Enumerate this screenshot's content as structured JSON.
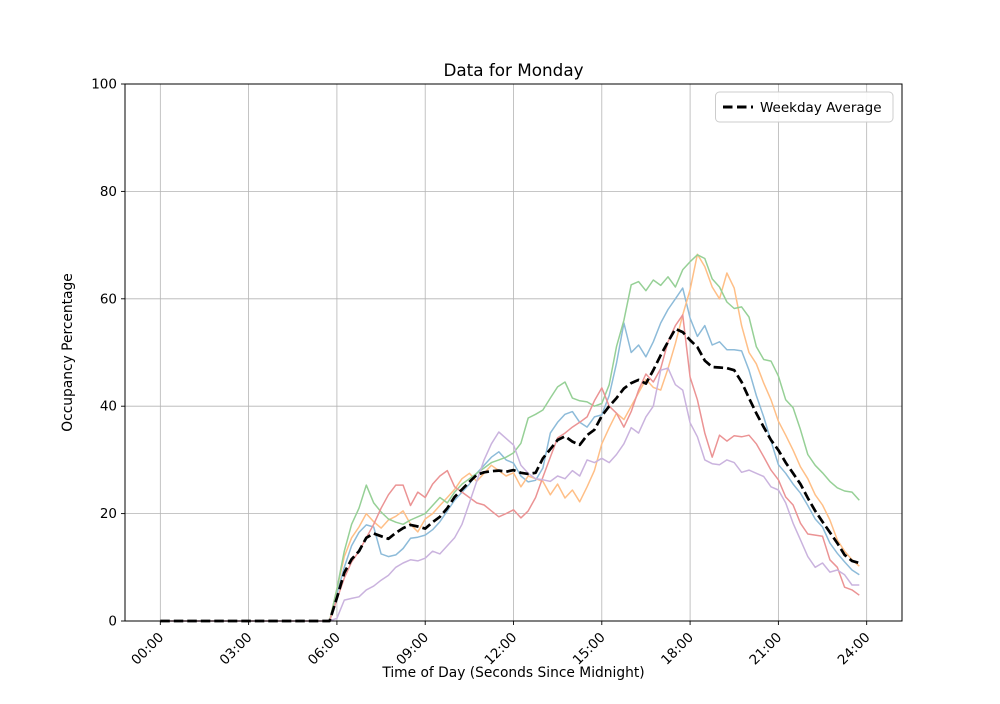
{
  "chart_data": {
    "type": "line",
    "title": "Data for Monday",
    "xlabel": "Time of Day (Seconds Since Midnight)",
    "ylabel": "Occupancy Percentage",
    "grid": true,
    "legend": {
      "position": "upper right",
      "entries": [
        {
          "label": "Weekday Average",
          "style": "dashed",
          "color": "#000000"
        }
      ]
    },
    "xlim_hours": [
      -1.2,
      25.2
    ],
    "ylim": [
      0,
      100
    ],
    "x_ticks": [
      {
        "hours": 0,
        "label": "00:00"
      },
      {
        "hours": 3,
        "label": "03:00"
      },
      {
        "hours": 6,
        "label": "06:00"
      },
      {
        "hours": 9,
        "label": "09:00"
      },
      {
        "hours": 12,
        "label": "12:00"
      },
      {
        "hours": 15,
        "label": "15:00"
      },
      {
        "hours": 18,
        "label": "18:00"
      },
      {
        "hours": 21,
        "label": "21:00"
      },
      {
        "hours": 24,
        "label": "24:00"
      }
    ],
    "y_ticks": [
      {
        "value": 0,
        "label": "0"
      },
      {
        "value": 20,
        "label": "20"
      },
      {
        "value": 40,
        "label": "40"
      },
      {
        "value": 60,
        "label": "60"
      },
      {
        "value": 80,
        "label": "80"
      },
      {
        "value": 100,
        "label": "100"
      }
    ],
    "x_hours": [
      0,
      0.25,
      0.5,
      0.75,
      1,
      1.25,
      1.5,
      1.75,
      2,
      2.25,
      2.5,
      2.75,
      3,
      3.25,
      3.5,
      3.75,
      4,
      4.25,
      4.5,
      4.75,
      5,
      5.25,
      5.5,
      5.75,
      6,
      6.25,
      6.5,
      6.75,
      7,
      7.25,
      7.5,
      7.75,
      8,
      8.25,
      8.5,
      8.75,
      9,
      9.25,
      9.5,
      9.75,
      10,
      10.25,
      10.5,
      10.75,
      11,
      11.25,
      11.5,
      11.75,
      12,
      12.25,
      12.5,
      12.75,
      13,
      13.25,
      13.5,
      13.75,
      14,
      14.25,
      14.5,
      14.75,
      15,
      15.25,
      15.5,
      15.75,
      16,
      16.25,
      16.5,
      16.75,
      17,
      17.25,
      17.5,
      17.75,
      18,
      18.25,
      18.5,
      18.75,
      19,
      19.25,
      19.5,
      19.75,
      20,
      20.25,
      20.5,
      20.75,
      21,
      21.25,
      21.5,
      21.75,
      22,
      22.25,
      22.5,
      22.75,
      23,
      23.25,
      23.5,
      23.75
    ],
    "series": [
      {
        "name": "day-series-blue",
        "color": "#8dbbd9",
        "width": 1.5,
        "dashed": false,
        "values": [
          0,
          0,
          0,
          0,
          0,
          0,
          0,
          0,
          0,
          0,
          0,
          0,
          0,
          0,
          0,
          0,
          0,
          0,
          0,
          0,
          0,
          0,
          0,
          0,
          5,
          10,
          14,
          16.5,
          17.9,
          17.5,
          12.5,
          12,
          12.3,
          13.5,
          15.4,
          15.6,
          16,
          17,
          18.5,
          20.5,
          22.5,
          24,
          25.5,
          27.5,
          29,
          30.5,
          31.5,
          30,
          29.4,
          27,
          25.9,
          26.2,
          28.5,
          35,
          37,
          38.5,
          39,
          37,
          36.1,
          38,
          38.4,
          42,
          48,
          55.5,
          50,
          51.4,
          49.2,
          52,
          55.5,
          58,
          60,
          62,
          56.4,
          53,
          55,
          51.4,
          52,
          50.5,
          50.5,
          50.3,
          46.7,
          42,
          38,
          33.5,
          29.1,
          27.5,
          25.5,
          23.8,
          21.5,
          19,
          17.5,
          14.5,
          12.6,
          11,
          9.5,
          8.6
        ]
      },
      {
        "name": "day-series-orange",
        "color": "#ffbf87",
        "width": 1.5,
        "dashed": false,
        "values": [
          0,
          0,
          0,
          0,
          0,
          0,
          0,
          0,
          0,
          0,
          0,
          0,
          0,
          0,
          0,
          0,
          0,
          0,
          0,
          0,
          0,
          0,
          0,
          0,
          6,
          12,
          15.5,
          17.5,
          20,
          18.5,
          17.3,
          18.8,
          19.5,
          20.5,
          18,
          16.6,
          19,
          20,
          21.5,
          23,
          24.5,
          26.5,
          27.5,
          26,
          27.5,
          29,
          28,
          27,
          27.6,
          25,
          27,
          26.5,
          26,
          23.5,
          25.5,
          22.9,
          24.4,
          22.2,
          25,
          28,
          33,
          36,
          38.7,
          37.5,
          40,
          42.5,
          45,
          43.5,
          43,
          47,
          51.7,
          57,
          61.7,
          68.3,
          66,
          62.2,
          60,
          64.8,
          62,
          55,
          50,
          47.9,
          44.3,
          41.2,
          37.2,
          34.6,
          31.8,
          28.7,
          26.5,
          23.5,
          21.6,
          18.8,
          15.1,
          13,
          11.4,
          10.2
        ]
      },
      {
        "name": "day-series-green",
        "color": "#96d096",
        "width": 1.5,
        "dashed": false,
        "values": [
          0,
          0,
          0,
          0,
          0,
          0,
          0,
          0,
          0,
          0,
          0,
          0,
          0,
          0,
          0,
          0,
          0,
          0,
          0,
          0,
          0,
          0,
          0,
          0,
          6,
          13,
          18,
          21,
          25.3,
          22,
          20.3,
          19,
          18.4,
          18,
          18.8,
          19.4,
          20,
          21.5,
          23,
          22,
          24,
          25.5,
          26.5,
          27.5,
          28.5,
          29.5,
          30,
          30.5,
          31.3,
          33.1,
          37.8,
          38.5,
          39.3,
          41.5,
          43.6,
          44.5,
          41.5,
          41,
          40.8,
          40,
          40.5,
          44,
          51.1,
          56,
          62.6,
          63.2,
          61.5,
          63.5,
          62.5,
          64.1,
          62.2,
          65.4,
          66.9,
          68.2,
          67.5,
          63.7,
          62.2,
          59.4,
          58.2,
          58.5,
          56.6,
          51.1,
          48.7,
          48.4,
          45.6,
          41.2,
          39.7,
          35.6,
          31,
          29,
          27.6,
          26,
          24.8,
          24.2,
          24,
          22.5
        ]
      },
      {
        "name": "day-series-red",
        "color": "#eb9394",
        "width": 1.5,
        "dashed": false,
        "values": [
          0,
          0,
          0,
          0,
          0,
          0,
          0,
          0,
          0,
          0,
          0,
          0,
          0,
          0,
          0,
          0,
          0,
          0,
          0,
          0,
          0,
          0,
          0,
          0,
          4,
          8,
          11,
          13,
          15.5,
          18,
          21,
          23.5,
          25.3,
          25.3,
          21.5,
          24,
          23,
          25.5,
          27,
          28,
          25,
          24,
          23,
          22,
          21.6,
          20.5,
          19.4,
          20,
          20.7,
          19.2,
          20.5,
          23,
          26.8,
          30.5,
          34.1,
          35,
          36.1,
          37,
          38,
          41,
          43.4,
          40,
          38.7,
          36.1,
          39,
          43,
          46,
          44.5,
          47,
          52,
          55,
          57,
          45.4,
          41.2,
          35,
          30.5,
          34.6,
          33.5,
          34.5,
          34.3,
          34.6,
          33,
          30.6,
          28.1,
          26.3,
          23.1,
          21.6,
          18.2,
          16.2,
          16,
          15.8,
          11.4,
          10,
          6.3,
          5.8,
          4.8
        ]
      },
      {
        "name": "day-series-purple",
        "color": "#cab3de",
        "width": 1.5,
        "dashed": false,
        "values": [
          0,
          0,
          0,
          0,
          0,
          0,
          0,
          0,
          0,
          0,
          0,
          0,
          0,
          0,
          0,
          0,
          0,
          0,
          0,
          0,
          0,
          0,
          0,
          0,
          0.5,
          3.9,
          4.2,
          4.5,
          5.8,
          6.5,
          7.6,
          8.5,
          10,
          10.8,
          11.4,
          11.2,
          11.7,
          13,
          12.5,
          14,
          15.5,
          18,
          22,
          26,
          30,
          33,
          35.2,
          34,
          32.8,
          29,
          27.5,
          26.5,
          26.3,
          26,
          27,
          26.5,
          28,
          27,
          30,
          29.5,
          30.3,
          29.5,
          31,
          33,
          36,
          35,
          38,
          40,
          46.7,
          47.1,
          44,
          43,
          36.9,
          34.3,
          30,
          29.3,
          29.1,
          30,
          29.5,
          27.7,
          28.1,
          27.5,
          26.9,
          25,
          24.4,
          22,
          18.2,
          15.1,
          12,
          10,
          10.8,
          9.1,
          9.5,
          8.6,
          6.7,
          6.7
        ]
      },
      {
        "name": "weekday-average",
        "color": "#000000",
        "width": 2.7,
        "dashed": true,
        "values": [
          0,
          0,
          0,
          0,
          0,
          0,
          0,
          0,
          0,
          0,
          0,
          0,
          0,
          0,
          0,
          0,
          0,
          0,
          0,
          0,
          0,
          0,
          0,
          0,
          4.3,
          9,
          11.5,
          13,
          15.5,
          16.3,
          15.8,
          15.3,
          16.4,
          17.3,
          17.9,
          17.6,
          17.2,
          18.4,
          19.4,
          21,
          23.1,
          24.5,
          25.9,
          27.2,
          27.7,
          27.9,
          28,
          27.8,
          28.1,
          27.6,
          27.4,
          27.6,
          30.3,
          32,
          33.7,
          34.4,
          33.4,
          32.8,
          34.6,
          35.6,
          38.2,
          40,
          41.5,
          43.3,
          44.3,
          44.9,
          44.2,
          46.7,
          49.5,
          52,
          54.4,
          53.8,
          52.3,
          51,
          48.5,
          47.3,
          47.2,
          47.1,
          46.7,
          44.5,
          41.5,
          38.7,
          36.1,
          33.7,
          31.8,
          29.5,
          27.5,
          25.5,
          22.9,
          20.5,
          18.5,
          16.5,
          14.5,
          12.3,
          11.2,
          10.8
        ]
      }
    ],
    "colors": {
      "grid": "#b4b4b4",
      "spine": "#000000",
      "legend_border": "#cccccc",
      "background": "#ffffff"
    }
  }
}
